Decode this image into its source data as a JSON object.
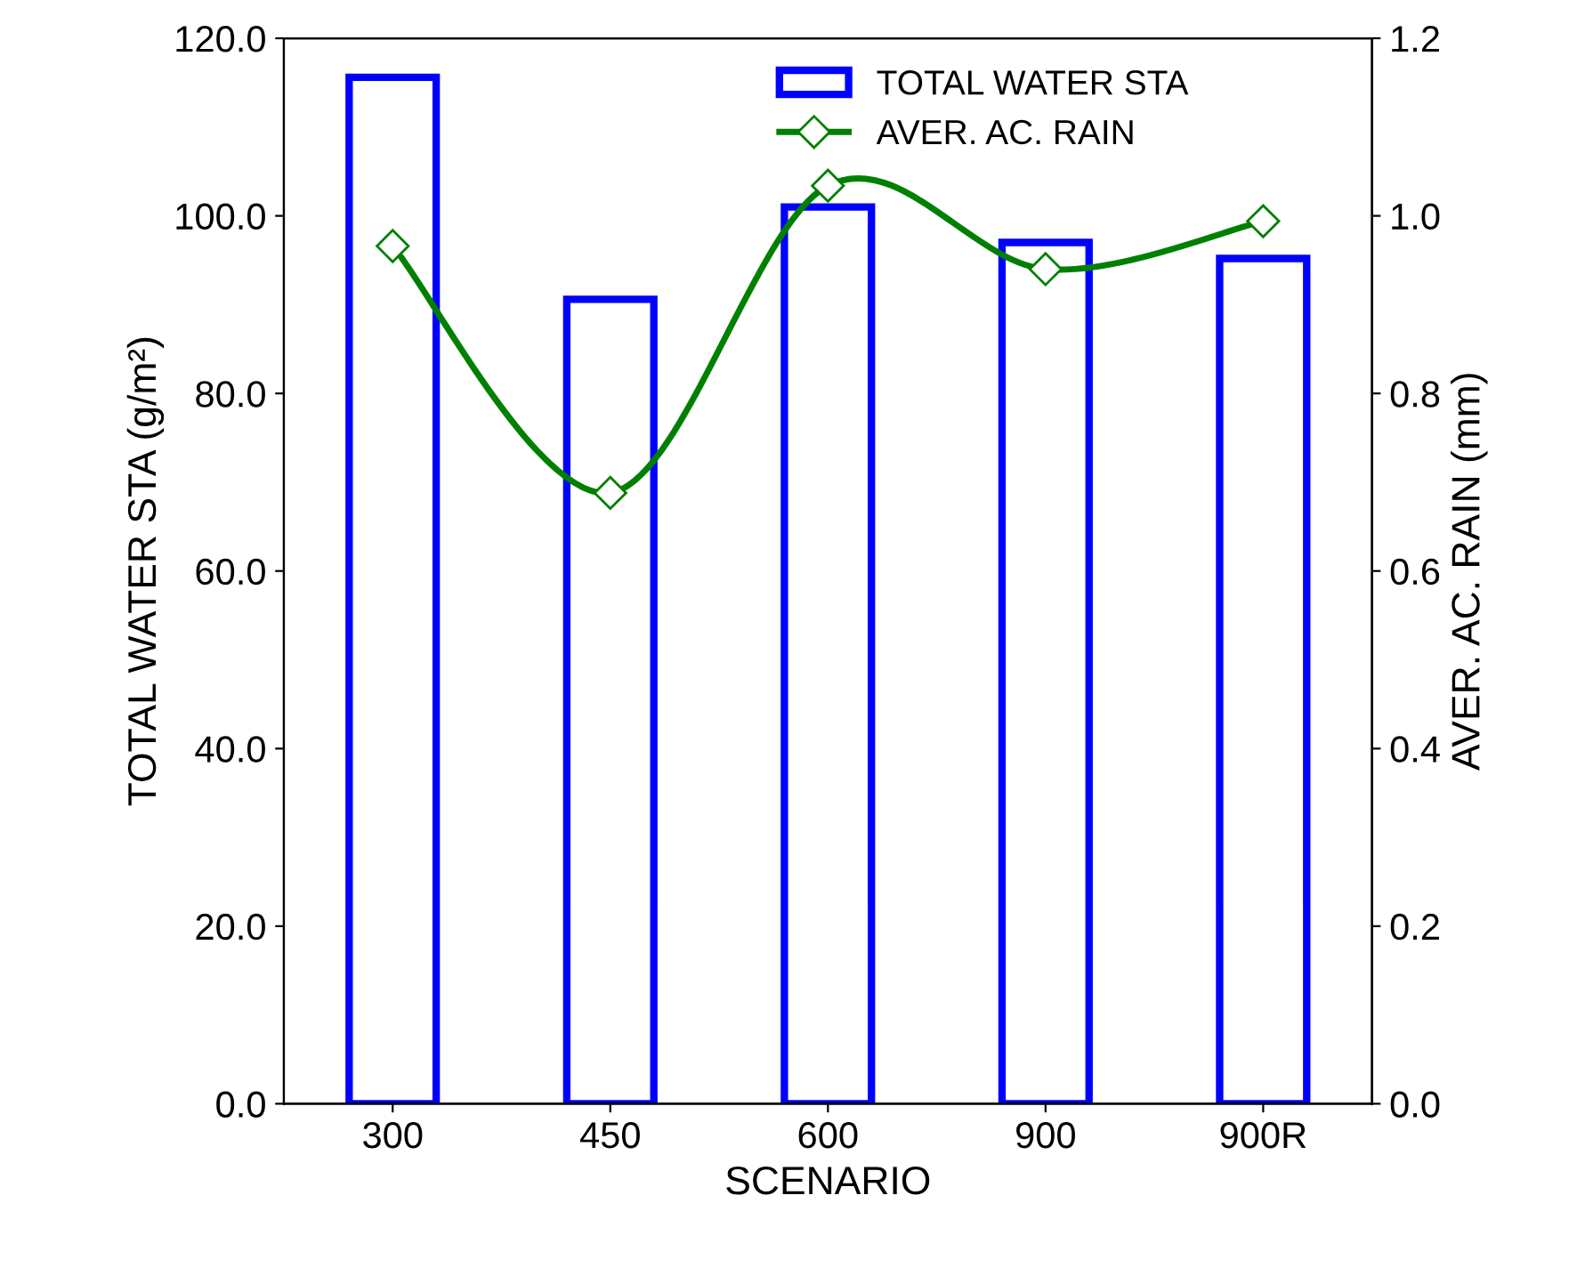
{
  "chart_data": {
    "type": "bar",
    "xlabel": "SCENARIO",
    "ylabel": "TOTAL WATER STA (g/m²)",
    "y2label": "AVER. AC. RAIN (mm)",
    "categories": [
      "300",
      "450",
      "600",
      "900",
      "900R"
    ],
    "series": [
      {
        "name": "TOTAL WATER STA",
        "color": "#0000ff",
        "values": [
          115.6,
          90.6,
          101.0,
          97.0,
          95.2
        ]
      },
      {
        "name": "AVER. AC. RAIN",
        "type": "line",
        "axis": "y2",
        "color": "#008000",
        "marker": "diamond",
        "values": [
          0.966,
          0.688,
          1.034,
          0.94,
          0.994
        ]
      }
    ],
    "ylim": [
      0,
      120
    ],
    "yticks": [
      {
        "value": 0,
        "label": "0.0"
      },
      {
        "value": 20,
        "label": "20.0"
      },
      {
        "value": 40,
        "label": "40.0"
      },
      {
        "value": 60,
        "label": "60.0"
      },
      {
        "value": 80,
        "label": "80.0"
      },
      {
        "value": 100,
        "label": "100.0"
      },
      {
        "value": 120,
        "label": "120.0"
      }
    ],
    "y2lim": [
      0,
      1.2
    ],
    "y2ticks": [
      {
        "value": 0,
        "label": "0.0"
      },
      {
        "value": 0.2,
        "label": "0.2"
      },
      {
        "value": 0.4,
        "label": "0.4"
      },
      {
        "value": 0.6,
        "label": "0.6"
      },
      {
        "value": 0.8,
        "label": "0.8"
      },
      {
        "value": 1.0,
        "label": "1.0"
      },
      {
        "value": 1.2,
        "label": "1.2"
      }
    ],
    "grid": false,
    "legend": "top right"
  }
}
